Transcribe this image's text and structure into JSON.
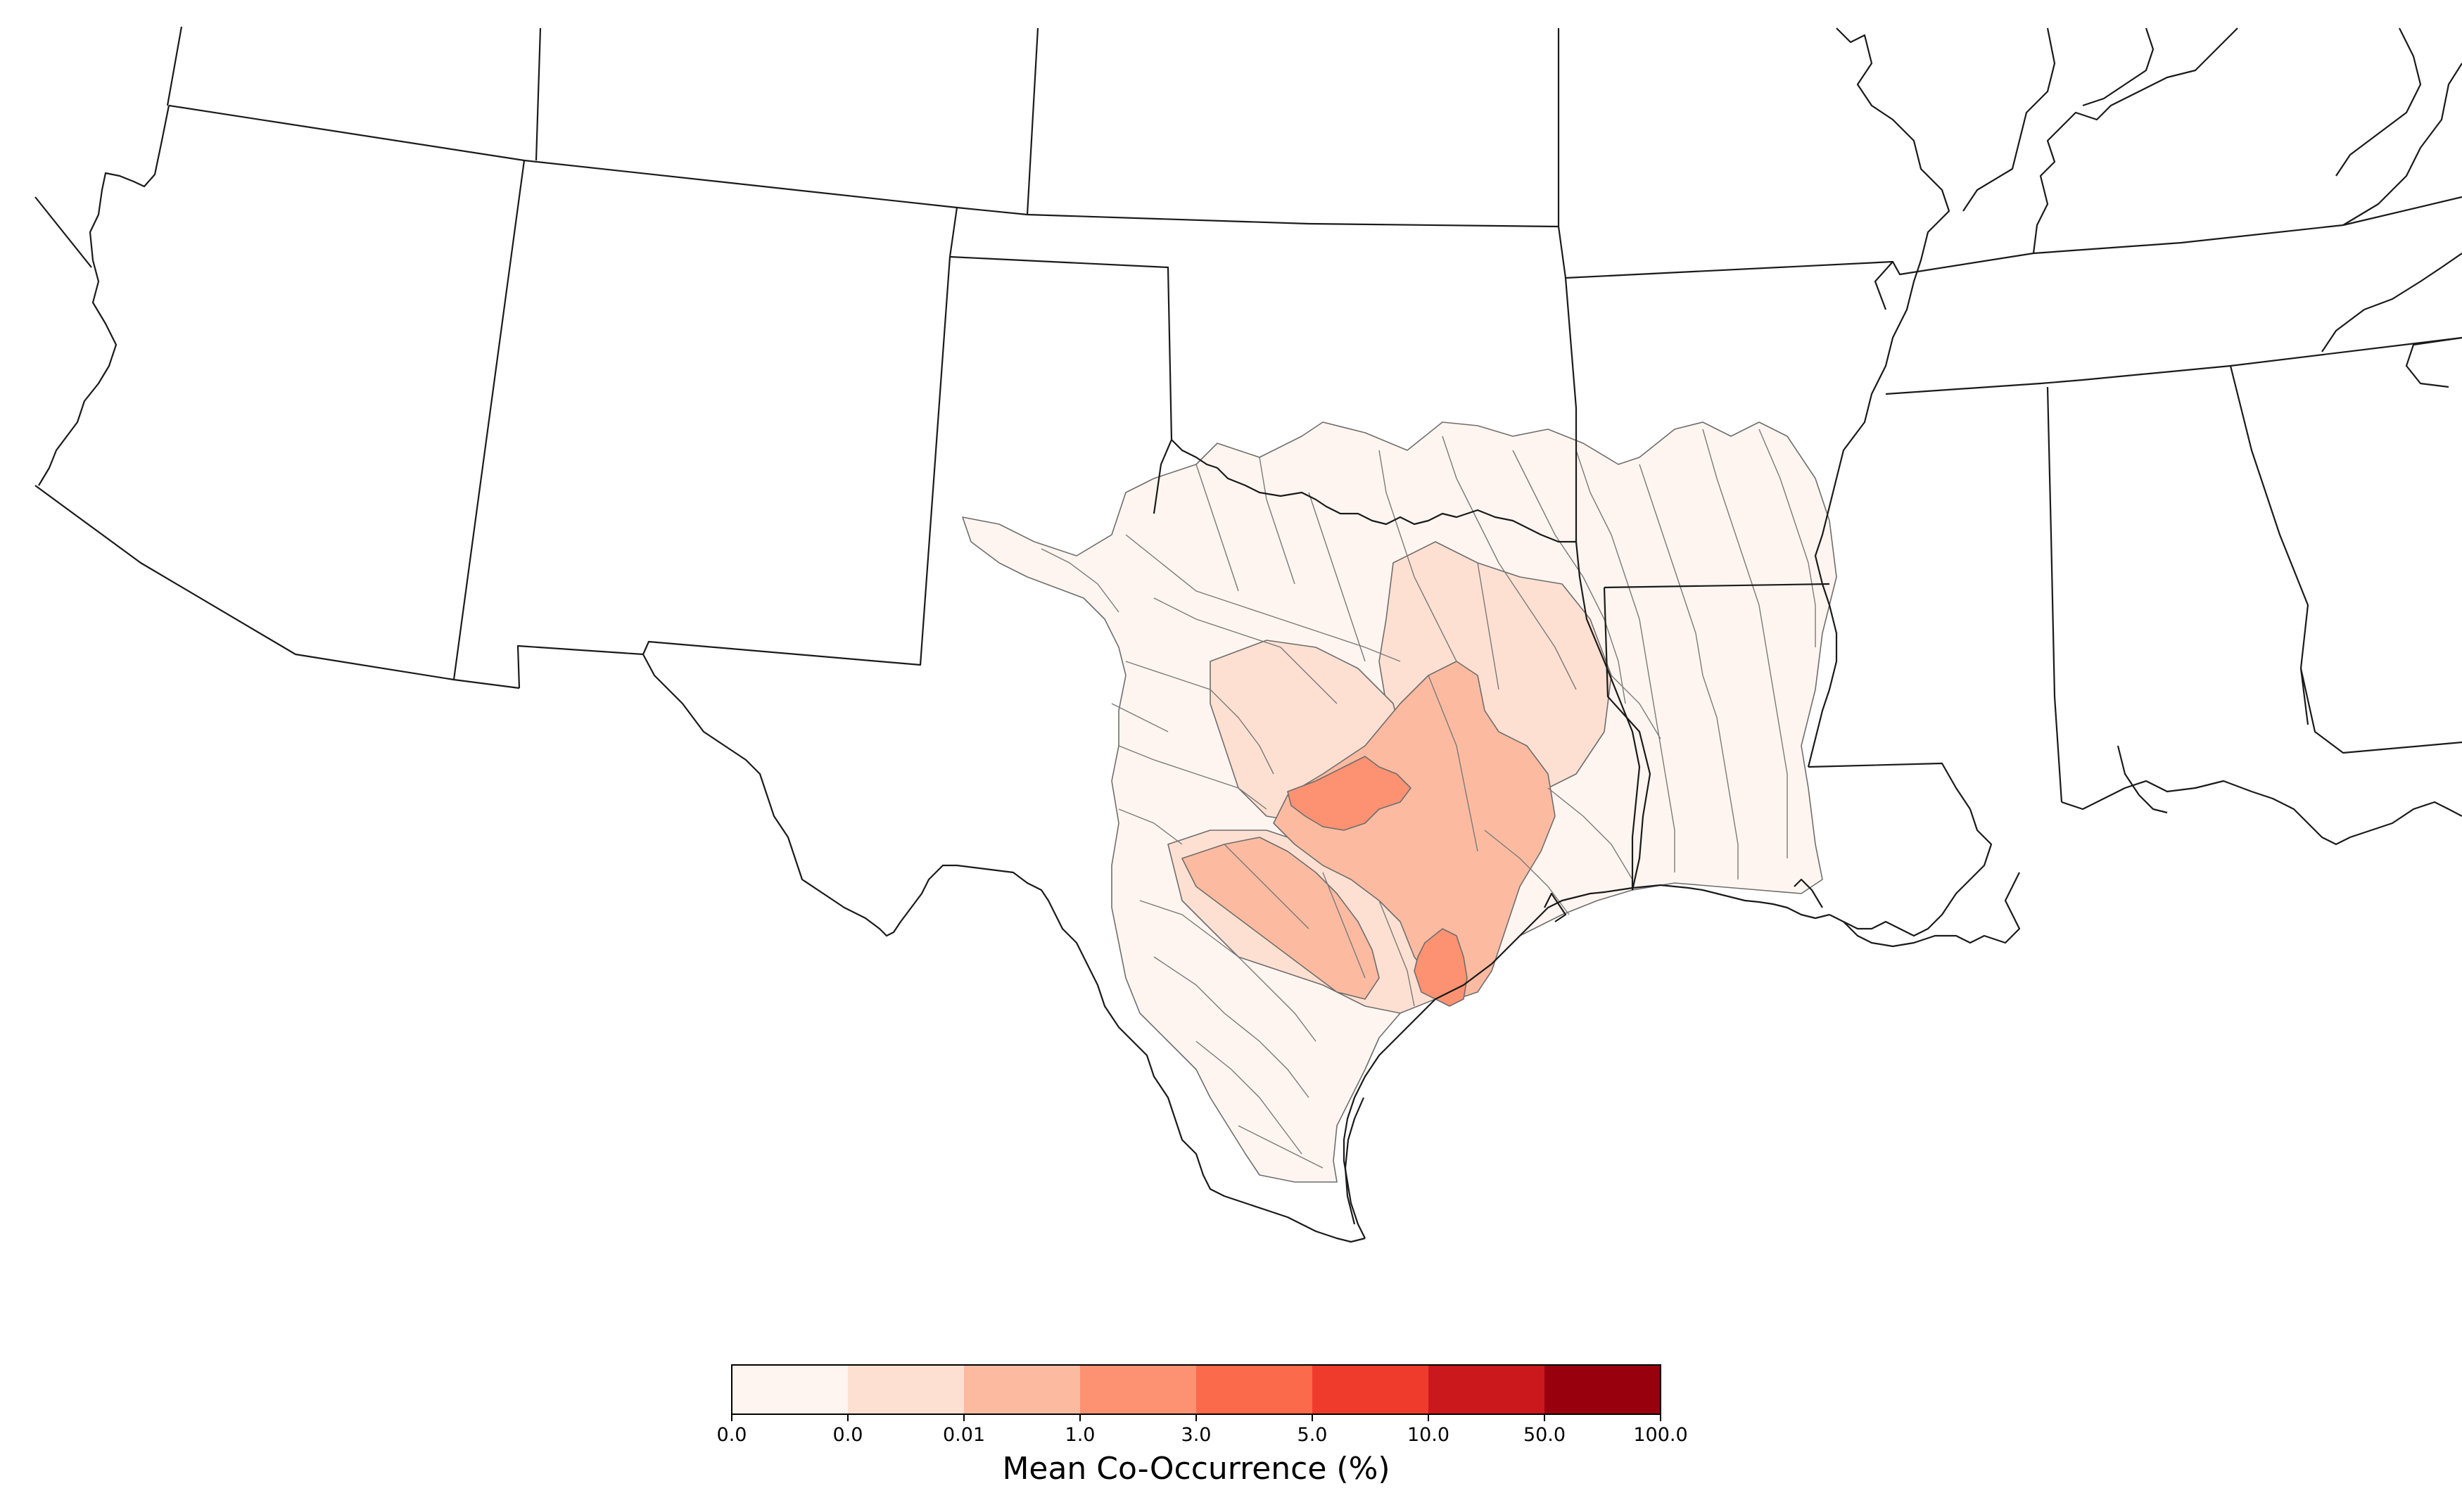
{
  "legend": {
    "title": "Mean Co-Occurrence (%)",
    "tick_labels": [
      "0.0",
      "0.0",
      "0.01",
      "1.0",
      "3.0",
      "5.0",
      "10.0",
      "50.0",
      "100.0"
    ],
    "bin_colors": [
      "#fff5f0",
      "#fee0d2",
      "#fcbba1",
      "#fc9272",
      "#fb6a4a",
      "#ef3b2c",
      "#cb181d",
      "#99000d"
    ]
  },
  "basin_classes": {
    "very_low": "#fff5f0",
    "low": "#fee0d2",
    "medium": "#fcbba1",
    "high": "#fc9272"
  }
}
